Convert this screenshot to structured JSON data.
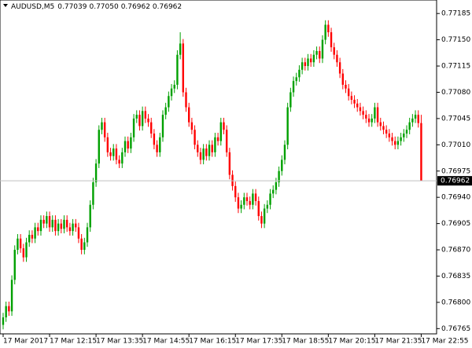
{
  "chart_data": {
    "type": "candlestick",
    "title": "AUDUSD,M5",
    "last_bar_labels": [
      "0.77039",
      "0.77050",
      "0.76962",
      "0.76962"
    ],
    "up_color": "#00a000",
    "down_color": "#ff0000",
    "xlim": [
      -1.08,
      149.3
    ],
    "xticks": [
      {
        "value": 0,
        "label": "17 Mar 2017"
      },
      {
        "value": 16,
        "label": "17 Mar 12:15"
      },
      {
        "value": 32,
        "label": "17 Mar 13:35"
      },
      {
        "value": 48,
        "label": "17 Mar 14:55"
      },
      {
        "value": 64,
        "label": "17 Mar 16:15"
      },
      {
        "value": 80,
        "label": "17 Mar 17:35"
      },
      {
        "value": 96,
        "label": "17 Mar 18:55"
      },
      {
        "value": 112,
        "label": "17 Mar 20:15"
      },
      {
        "value": 128,
        "label": "17 Mar 21:35"
      },
      {
        "value": 144,
        "label": "17 Mar 22:55"
      }
    ],
    "ylim": [
      0.76758,
      0.77203
    ],
    "yticks": [
      0.77185,
      {
        "value": 0.7715,
        "label": "0.77150"
      },
      0.77115,
      {
        "value": 0.7708,
        "label": "0.77080"
      },
      0.77045,
      {
        "value": 0.7701,
        "label": "0.77010"
      },
      0.76975,
      {
        "value": 0.7694,
        "label": "0.76940"
      },
      0.76905,
      {
        "value": 0.7687,
        "label": "0.76870"
      },
      0.76835,
      {
        "value": 0.768,
        "label": "0.76800"
      },
      0.76765
    ],
    "open": [
      0.7677,
      0.7678,
      0.76795,
      0.76788,
      0.7683,
      0.7687,
      0.76885,
      0.76872,
      0.7686,
      0.7688,
      0.7689,
      0.76885,
      0.769,
      0.76895,
      0.7691,
      0.76905,
      0.76915,
      0.769,
      0.7691,
      0.76895,
      0.76905,
      0.76898,
      0.7691,
      0.769,
      0.76895,
      0.76905,
      0.769,
      0.76885,
      0.7687,
      0.7688,
      0.769,
      0.7693,
      0.7696,
      0.76985,
      0.7703,
      0.7704,
      0.7702,
      0.77,
      0.76995,
      0.77005,
      0.7699,
      0.76985,
      0.77,
      0.77015,
      0.77005,
      0.7702,
      0.77045,
      0.7705,
      0.77035,
      0.77055,
      0.77045,
      0.7704,
      0.77025,
      0.7701,
      0.77,
      0.7702,
      0.7705,
      0.7706,
      0.77075,
      0.77085,
      0.7709,
      0.7713,
      0.77145,
      0.7708,
      0.7706,
      0.7704,
      0.7703,
      0.7701,
      0.77,
      0.7699,
      0.77005,
      0.76995,
      0.7701,
      0.77,
      0.7702,
      0.77015,
      0.7704,
      0.7703,
      0.77,
      0.7697,
      0.76955,
      0.7694,
      0.76925,
      0.7693,
      0.7694,
      0.76935,
      0.7693,
      0.76945,
      0.76935,
      0.76915,
      0.76905,
      0.76925,
      0.7693,
      0.76945,
      0.7695,
      0.7696,
      0.76975,
      0.7699,
      0.7701,
      0.7706,
      0.7708,
      0.77095,
      0.771,
      0.7711,
      0.7712,
      0.77115,
      0.77125,
      0.7712,
      0.7713,
      0.77135,
      0.77125,
      0.7715,
      0.7717,
      0.7716,
      0.7714,
      0.7713,
      0.7712,
      0.77105,
      0.7709,
      0.77085,
      0.77075,
      0.7707,
      0.77065,
      0.7706,
      0.77055,
      0.7705,
      0.77045,
      0.7704,
      0.77045,
      0.7706,
      0.7704,
      0.77035,
      0.7703,
      0.77025,
      0.7702,
      0.77015,
      0.7701,
      0.77015,
      0.7702,
      0.77025,
      0.7703,
      0.7704,
      0.77045,
      0.7705,
      0.77039
    ],
    "high": [
      0.76786,
      0.76801,
      0.76801,
      0.76836,
      0.76876,
      0.76891,
      0.76891,
      0.76878,
      0.76886,
      0.76896,
      0.76896,
      0.76906,
      0.76906,
      0.76916,
      0.76916,
      0.76921,
      0.76921,
      0.76916,
      0.76916,
      0.76911,
      0.76911,
      0.76916,
      0.76916,
      0.76906,
      0.76911,
      0.76911,
      0.76906,
      0.76891,
      0.76886,
      0.76906,
      0.76936,
      0.76966,
      0.76991,
      0.77036,
      0.77046,
      0.77046,
      0.77026,
      0.77006,
      0.77011,
      0.77011,
      0.76996,
      0.77006,
      0.77021,
      0.77021,
      0.77026,
      0.77051,
      0.77056,
      0.77056,
      0.77061,
      0.77061,
      0.77051,
      0.77046,
      0.77031,
      0.77016,
      0.77026,
      0.77056,
      0.77066,
      0.77081,
      0.77091,
      0.77096,
      0.77136,
      0.7716,
      0.77151,
      0.77086,
      0.77066,
      0.77046,
      0.77036,
      0.77016,
      0.77006,
      0.77011,
      0.77011,
      0.77016,
      0.77016,
      0.77026,
      0.77026,
      0.77046,
      0.77046,
      0.77036,
      0.77006,
      0.76976,
      0.76961,
      0.76946,
      0.76936,
      0.76946,
      0.76946,
      0.76941,
      0.76951,
      0.76951,
      0.76941,
      0.76921,
      0.76931,
      0.76936,
      0.76951,
      0.76956,
      0.76966,
      0.76981,
      0.76996,
      0.77016,
      0.77066,
      0.77086,
      0.77101,
      0.77106,
      0.77116,
      0.77126,
      0.77126,
      0.77131,
      0.77131,
      0.77136,
      0.77141,
      0.77141,
      0.77156,
      0.77176,
      0.77176,
      0.77166,
      0.77146,
      0.77136,
      0.77126,
      0.77111,
      0.77096,
      0.77091,
      0.77081,
      0.77076,
      0.77071,
      0.77066,
      0.77061,
      0.77056,
      0.77051,
      0.77051,
      0.77066,
      0.77066,
      0.77046,
      0.77041,
      0.77036,
      0.77031,
      0.77026,
      0.77021,
      0.77021,
      0.77026,
      0.77031,
      0.77036,
      0.77046,
      0.77051,
      0.77056,
      0.77056,
      0.7705
    ],
    "low": [
      0.76764,
      0.76774,
      0.76782,
      0.76782,
      0.76824,
      0.76864,
      0.76866,
      0.76854,
      0.76854,
      0.76874,
      0.76879,
      0.76879,
      0.76889,
      0.76889,
      0.76899,
      0.76899,
      0.76894,
      0.76894,
      0.76889,
      0.76889,
      0.76892,
      0.76892,
      0.76894,
      0.76889,
      0.76889,
      0.76894,
      0.76879,
      0.76864,
      0.76864,
      0.76874,
      0.76894,
      0.76924,
      0.76954,
      0.76979,
      0.77024,
      0.77014,
      0.76994,
      0.76989,
      0.76989,
      0.76984,
      0.76979,
      0.76979,
      0.76994,
      0.76999,
      0.76999,
      0.77014,
      0.77039,
      0.77029,
      0.77029,
      0.77039,
      0.77034,
      0.77019,
      0.77004,
      0.76994,
      0.76994,
      0.77014,
      0.77044,
      0.77054,
      0.77069,
      0.77079,
      0.77084,
      0.77124,
      0.77074,
      0.77054,
      0.77034,
      0.77024,
      0.77004,
      0.76994,
      0.76984,
      0.76984,
      0.76989,
      0.76989,
      0.76994,
      0.76994,
      0.77009,
      0.77009,
      0.77024,
      0.76994,
      0.76964,
      0.76949,
      0.76934,
      0.76919,
      0.76919,
      0.76924,
      0.76929,
      0.76924,
      0.76924,
      0.76929,
      0.76909,
      0.76899,
      0.76899,
      0.76919,
      0.76924,
      0.76939,
      0.76944,
      0.76954,
      0.76969,
      0.76984,
      0.77004,
      0.77054,
      0.77074,
      0.77089,
      0.77094,
      0.77104,
      0.77109,
      0.77109,
      0.77114,
      0.77114,
      0.77124,
      0.77119,
      0.77119,
      0.77144,
      0.77154,
      0.77134,
      0.77124,
      0.77114,
      0.77099,
      0.77084,
      0.77079,
      0.77069,
      0.77064,
      0.77059,
      0.77054,
      0.77049,
      0.77044,
      0.77039,
      0.77034,
      0.77034,
      0.77039,
      0.77034,
      0.77029,
      0.77024,
      0.77019,
      0.77014,
      0.77009,
      0.77004,
      0.77004,
      0.77009,
      0.77014,
      0.77019,
      0.77024,
      0.77034,
      0.77039,
      0.77033,
      0.76962
    ],
    "close": [
      0.7678,
      0.76795,
      0.76788,
      0.7683,
      0.7687,
      0.76885,
      0.76872,
      0.7686,
      0.7688,
      0.7689,
      0.76885,
      0.769,
      0.76895,
      0.7691,
      0.76905,
      0.76915,
      0.769,
      0.7691,
      0.76895,
      0.76905,
      0.76898,
      0.7691,
      0.769,
      0.76895,
      0.76905,
      0.769,
      0.76885,
      0.7687,
      0.7688,
      0.769,
      0.7693,
      0.7696,
      0.76985,
      0.7703,
      0.7704,
      0.7702,
      0.77,
      0.76995,
      0.77005,
      0.7699,
      0.76985,
      0.77,
      0.77015,
      0.77005,
      0.7702,
      0.77045,
      0.7705,
      0.77035,
      0.77055,
      0.77045,
      0.7704,
      0.77025,
      0.7701,
      0.77,
      0.7702,
      0.7705,
      0.7706,
      0.77075,
      0.77085,
      0.7709,
      0.7713,
      0.77145,
      0.7708,
      0.7706,
      0.7704,
      0.7703,
      0.7701,
      0.77,
      0.7699,
      0.77005,
      0.76995,
      0.7701,
      0.77,
      0.7702,
      0.77015,
      0.7704,
      0.7703,
      0.77,
      0.7697,
      0.76955,
      0.7694,
      0.76925,
      0.7693,
      0.7694,
      0.76935,
      0.7693,
      0.76945,
      0.76935,
      0.76915,
      0.76905,
      0.76925,
      0.7693,
      0.76945,
      0.7695,
      0.7696,
      0.76975,
      0.7699,
      0.7701,
      0.7706,
      0.7708,
      0.77095,
      0.771,
      0.7711,
      0.7712,
      0.77115,
      0.77125,
      0.7712,
      0.7713,
      0.77135,
      0.77125,
      0.7715,
      0.7717,
      0.7716,
      0.7714,
      0.7713,
      0.7712,
      0.77105,
      0.7709,
      0.77085,
      0.77075,
      0.7707,
      0.77065,
      0.7706,
      0.77055,
      0.7705,
      0.77045,
      0.7704,
      0.77045,
      0.7706,
      0.7704,
      0.77035,
      0.7703,
      0.77025,
      0.7702,
      0.77015,
      0.7701,
      0.77015,
      0.7702,
      0.77025,
      0.7703,
      0.7704,
      0.77045,
      0.7705,
      0.77039,
      0.76962
    ]
  }
}
